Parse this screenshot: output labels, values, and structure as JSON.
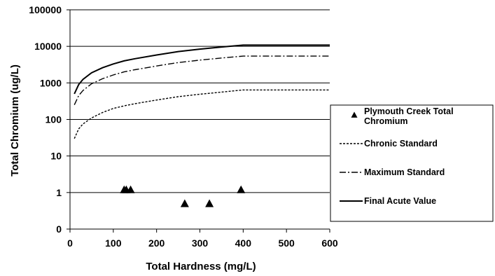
{
  "chart_data": {
    "type": "line",
    "xlabel": "Total Hardness (mg/L)",
    "ylabel": "Total Chromium (ug/L)",
    "xlim": [
      0,
      600
    ],
    "ylim": [
      0.1,
      100000
    ],
    "yscale": "log",
    "xticks": [
      0,
      100,
      200,
      300,
      400,
      500,
      600
    ],
    "yticks": [
      {
        "value": 0.1,
        "label": "0"
      },
      {
        "value": 1,
        "label": "1"
      },
      {
        "value": 10,
        "label": "10"
      },
      {
        "value": 100,
        "label": "100"
      },
      {
        "value": 1000,
        "label": "1000"
      },
      {
        "value": 10000,
        "label": "10000"
      },
      {
        "value": 100000,
        "label": "100000"
      }
    ],
    "grid": "horizontal",
    "legend_position": "right",
    "series": [
      {
        "name": "Plymouth Creek Total Chromium",
        "type": "scatter",
        "marker": "triangle",
        "x": [
          125,
          130,
          140,
          265,
          322,
          395
        ],
        "y": [
          1.2,
          1.2,
          1.2,
          0.5,
          0.5,
          1.2
        ]
      },
      {
        "name": "Chronic Standard",
        "dash": "short",
        "x": [
          10,
          20,
          30,
          50,
          75,
          100,
          125,
          150,
          200,
          250,
          300,
          350,
          400,
          600
        ],
        "y": [
          30,
          55,
          75,
          110,
          155,
          200,
          235,
          270,
          340,
          420,
          490,
          560,
          640,
          640
        ]
      },
      {
        "name": "Maximum Standard",
        "dash": "dashdot",
        "x": [
          10,
          20,
          30,
          50,
          75,
          100,
          125,
          150,
          200,
          250,
          300,
          350,
          400,
          600
        ],
        "y": [
          250,
          450,
          620,
          950,
          1300,
          1650,
          2000,
          2300,
          2900,
          3600,
          4200,
          4800,
          5400,
          5400
        ]
      },
      {
        "name": "Final Acute Value",
        "dash": "solid",
        "x": [
          10,
          20,
          30,
          50,
          75,
          100,
          125,
          150,
          200,
          250,
          300,
          350,
          400,
          600
        ],
        "y": [
          500,
          900,
          1250,
          1900,
          2600,
          3300,
          4000,
          4600,
          5800,
          7200,
          8400,
          9600,
          10800,
          10800
        ]
      }
    ]
  }
}
